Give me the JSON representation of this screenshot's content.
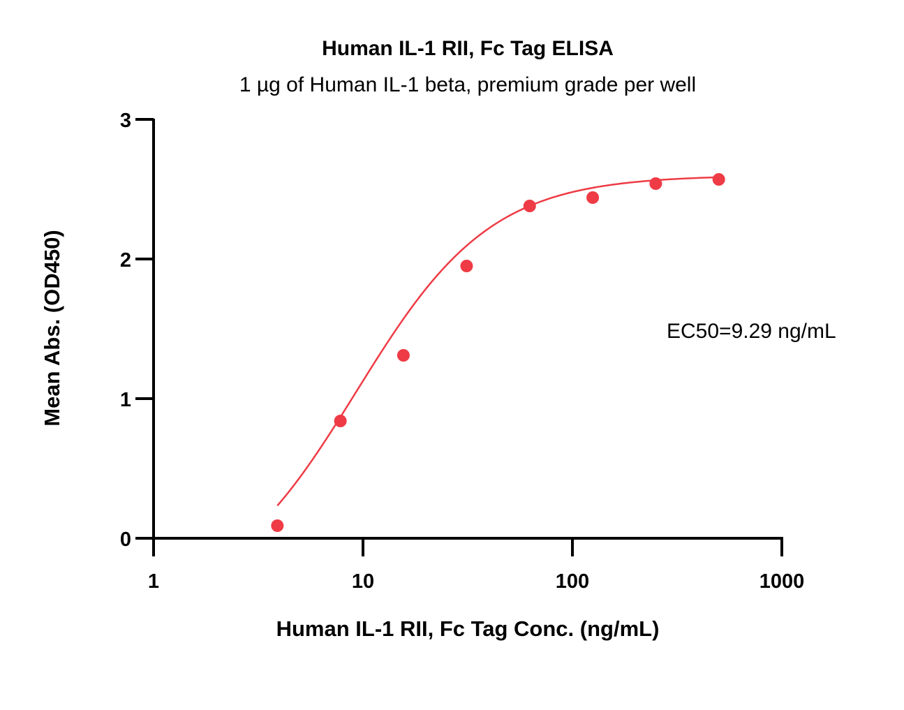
{
  "chart_data": {
    "type": "scatter",
    "title": "Human IL-1 RII, Fc Tag ELISA",
    "subtitle": "1 µg of Human IL-1 beta, premium grade per well",
    "xlabel": "Human IL-1 RII, Fc Tag Conc. (ng/mL)",
    "ylabel": "Mean Abs. (OD450)",
    "x_scale": "log",
    "xlim": [
      1,
      1000
    ],
    "ylim": [
      0,
      3
    ],
    "x_ticks": [
      "1",
      "10",
      "100",
      "1000"
    ],
    "y_ticks": [
      "0",
      "1",
      "2",
      "3"
    ],
    "grid": false,
    "series": [
      {
        "x": [
          3.9,
          7.8,
          15.6,
          31.25,
          62.5,
          125,
          250,
          500
        ],
        "y": [
          0.09,
          0.84,
          1.31,
          1.95,
          2.38,
          2.44,
          2.54,
          2.57
        ],
        "color": "#ee3b45",
        "fit": "4PL",
        "fit_params": {
          "bottom": -0.5,
          "top": 2.6,
          "ec50": 9.29,
          "hill": 1.35
        }
      }
    ],
    "annotations": [
      {
        "text": "EC50=9.29 ng/mL"
      }
    ]
  }
}
